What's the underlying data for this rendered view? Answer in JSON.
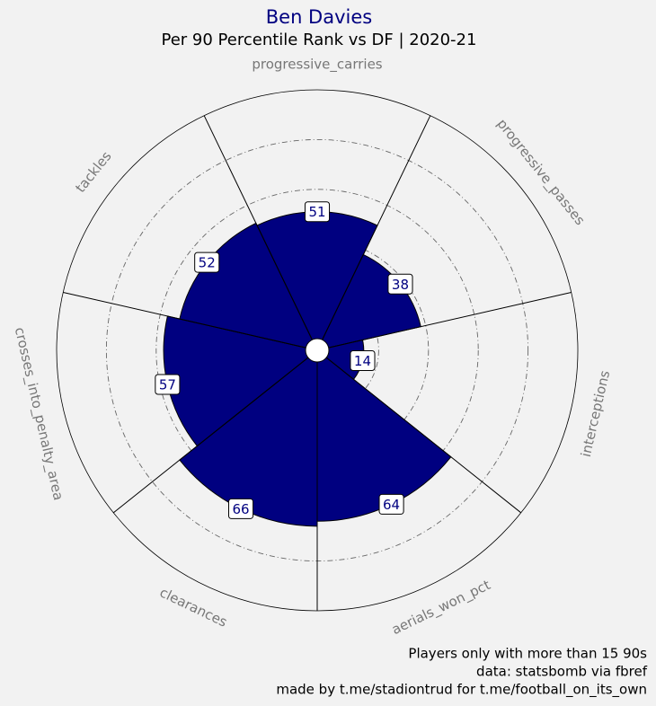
{
  "chart_data": {
    "type": "pizza",
    "title": "Ben Davies",
    "subtitle": "Per 90 Percentile Rank vs DF | 2020-21",
    "categories": [
      "progressive_carries",
      "progressive_passes",
      "interceptions",
      "aerials_won_pct",
      "clearances",
      "crosses_into_penalty_area",
      "tackles"
    ],
    "values": [
      51,
      38,
      14,
      64,
      66,
      57,
      52
    ],
    "color": "#000080",
    "rlim": [
      0,
      100
    ],
    "rticks": [
      20,
      40,
      60,
      80
    ],
    "grid": true,
    "footer": [
      "Players only with more than 15 90s",
      "data: statsbomb via fbref",
      "made by t.me/stadiontrud for t.me/football_on_its_own"
    ]
  }
}
